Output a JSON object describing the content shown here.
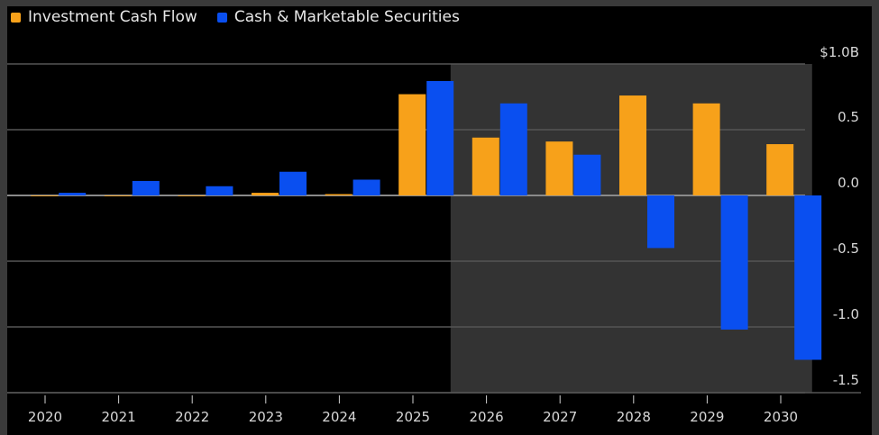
{
  "chart_data": {
    "type": "bar",
    "title": "",
    "xlabel": "",
    "ylabel": "",
    "categories": [
      "2020",
      "2021",
      "2022",
      "2023",
      "2024",
      "2025",
      "2026",
      "2027",
      "2028",
      "2029",
      "2030"
    ],
    "series": [
      {
        "name": "Investment Cash Flow",
        "color": "#f7a11a",
        "values": [
          0.0,
          0.0,
          0.0,
          0.02,
          0.01,
          0.77,
          0.44,
          0.41,
          0.76,
          0.7,
          0.39
        ]
      },
      {
        "name": "Cash & Marketable Securities",
        "color": "#0a4ff0",
        "values": [
          0.02,
          0.11,
          0.07,
          0.18,
          0.12,
          0.87,
          0.7,
          0.31,
          -0.4,
          -1.02,
          -1.25
        ]
      }
    ],
    "ylim": [
      -1.5,
      1.0
    ],
    "yticks": [
      1.0,
      0.5,
      0.0,
      -0.5,
      -1.0,
      -1.5
    ],
    "ytick_labels": [
      "$1.0B",
      "0.5",
      "0.0",
      "-0.5",
      "-1.0",
      "-1.5"
    ],
    "y_axis_side": "right",
    "grid": true,
    "legend": "top-left",
    "forecast_shading": {
      "from_category": "2026",
      "to_category": "2030",
      "color": "#333333"
    }
  }
}
